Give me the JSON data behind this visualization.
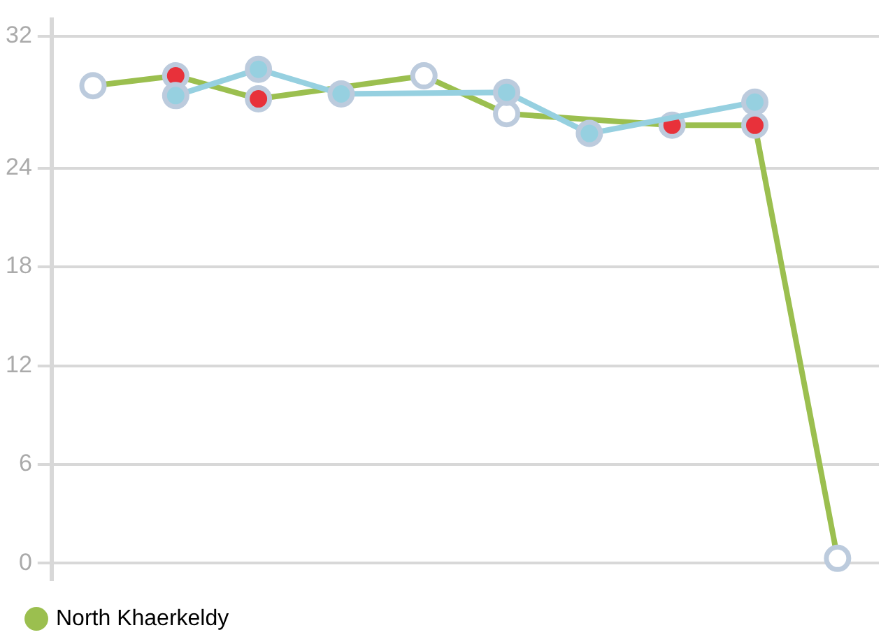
{
  "chart_data": {
    "type": "line",
    "categories": [
      null,
      null,
      null,
      null,
      null,
      null,
      null,
      null,
      null,
      null
    ],
    "series": [
      {
        "name": "North Khaerkeldy",
        "color": "#9bbf4f",
        "colors": [
          "#ffffff",
          "#e8313a",
          "#e8313a",
          null,
          "#ffffff",
          "#ffffff",
          null,
          "#e8313a",
          "#e8313a",
          "#ffffff"
        ],
        "values": [
          29.0,
          29.6,
          28.2,
          null,
          29.6,
          27.3,
          null,
          26.6,
          26.6,
          0.3
        ]
      },
      {
        "color": "#96d0e0",
        "values": [
          null,
          28.4,
          30.0,
          28.5,
          null,
          28.6,
          26.1,
          null,
          28.0,
          null
        ]
      }
    ],
    "ylim": [
      -1,
      33
    ],
    "yticks": [
      0,
      6,
      12,
      18,
      24,
      32
    ],
    "grid": "y",
    "tick_labels": "y",
    "legend": "bottom left",
    "marker": "circle",
    "line_style": "solid"
  }
}
